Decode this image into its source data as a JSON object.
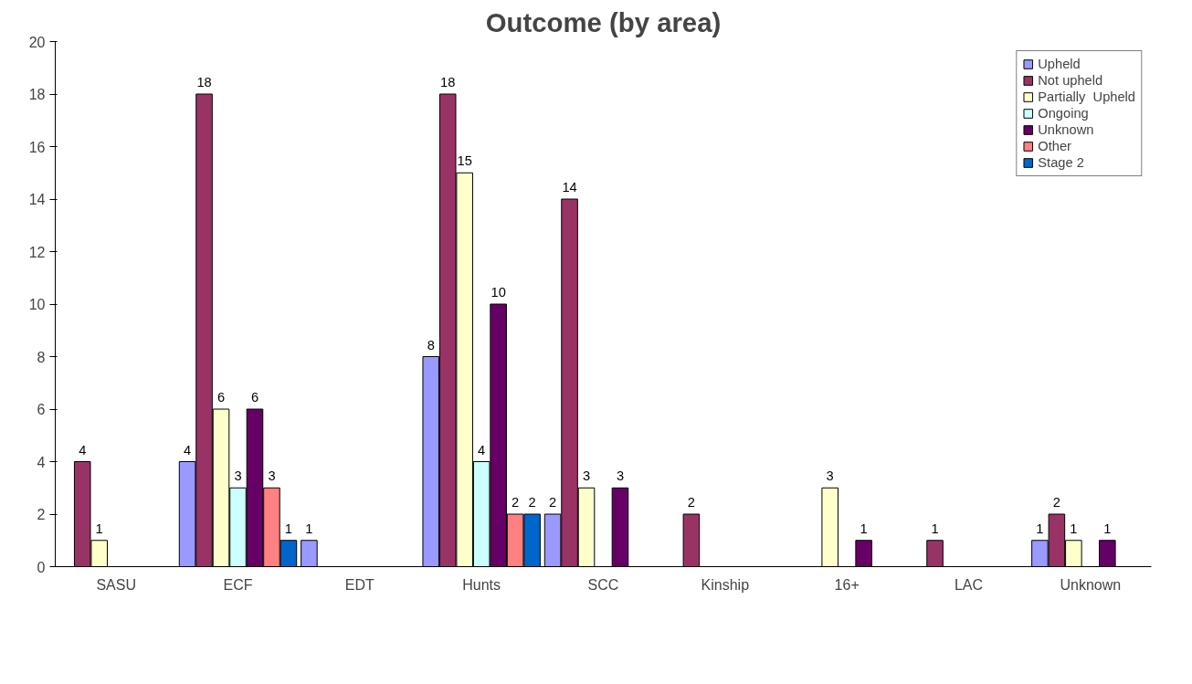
{
  "chart_data": {
    "type": "bar",
    "title": "Outcome (by area)",
    "categories": [
      "SASU",
      "ECF",
      "EDT",
      "Hunts",
      "SCC",
      "Kinship",
      "16+",
      "LAC",
      "Unknown"
    ],
    "series": [
      {
        "name": "Upheld",
        "color": "#9999ff",
        "values": [
          null,
          4,
          1,
          8,
          2,
          null,
          null,
          null,
          1
        ]
      },
      {
        "name": "Not upheld",
        "color": "#993366",
        "values": [
          4,
          18,
          null,
          18,
          14,
          2,
          null,
          1,
          2
        ]
      },
      {
        "name": "Partially  Upheld",
        "color": "#ffffcc",
        "values": [
          1,
          6,
          null,
          15,
          3,
          null,
          3,
          null,
          1
        ]
      },
      {
        "name": "Ongoing",
        "color": "#ccffff",
        "values": [
          null,
          3,
          null,
          4,
          null,
          null,
          null,
          null,
          null
        ]
      },
      {
        "name": "Unknown",
        "color": "#660066",
        "values": [
          null,
          6,
          null,
          10,
          3,
          null,
          1,
          null,
          1
        ]
      },
      {
        "name": "Other",
        "color": "#ff8080",
        "values": [
          null,
          3,
          null,
          2,
          null,
          null,
          null,
          null,
          null
        ]
      },
      {
        "name": "Stage 2",
        "color": "#0066cc",
        "values": [
          null,
          1,
          null,
          2,
          null,
          null,
          null,
          null,
          null
        ]
      }
    ],
    "ylim": [
      0,
      20
    ],
    "yticks": [
      0,
      2,
      4,
      6,
      8,
      10,
      12,
      14,
      16,
      18,
      20
    ],
    "data_labels": true,
    "grid": false,
    "legend": "top right"
  }
}
